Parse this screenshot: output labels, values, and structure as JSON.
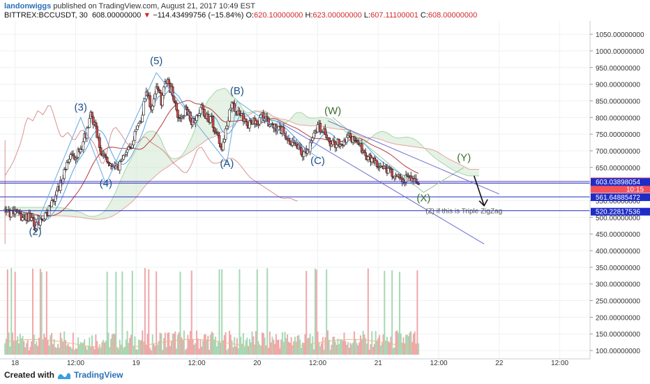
{
  "header": {
    "author": "landonwiggs",
    "published": "published on TradingView.com, August 21, 2017 10:49 EST",
    "symbol": "BITTREX:BCCUSDT, 30",
    "last": "608.00000000",
    "change_arrow": "▼",
    "change": "−114.43499756 (−15.84%)",
    "o_label": "O:",
    "o": "620.10000000",
    "h_label": "H:",
    "h": "623.00000000",
    "l_label": "L:",
    "l": "607.11100001",
    "c_label": "C:",
    "c": "608.00000000"
  },
  "footer": {
    "created": "Created with",
    "brand": "TradingView",
    "logo_icon": "tradingview-logo-icon"
  },
  "chart_data": {
    "type": "candlestick",
    "y_axis_labels": [
      "1050.00000000",
      "1000.00000000",
      "950.00000000",
      "900.00000000",
      "850.00000000",
      "800.00000000",
      "750.00000000",
      "700.00000000",
      "650.00000000",
      "600.00000000",
      "550.00000000",
      "500.00000000",
      "450.00000000",
      "400.00000000",
      "350.00000000",
      "300.00000000",
      "250.00000000",
      "200.00000000",
      "150.00000000",
      "100.00000000"
    ],
    "y_axis_values": [
      1050,
      1000,
      950,
      900,
      850,
      800,
      750,
      700,
      650,
      600,
      550,
      500,
      450,
      400,
      350,
      300,
      250,
      200,
      150,
      100
    ],
    "ylim": [
      75,
      1090
    ],
    "x_axis_labels": [
      {
        "label": "18",
        "t": 4
      },
      {
        "label": "12:00",
        "t": 16
      },
      {
        "label": "19",
        "t": 28
      },
      {
        "label": "12:00",
        "t": 40
      },
      {
        "label": "20",
        "t": 52
      },
      {
        "label": "12:00",
        "t": 64
      },
      {
        "label": "21",
        "t": 76
      },
      {
        "label": "12:00",
        "t": 88
      },
      {
        "label": "22",
        "t": 100
      },
      {
        "label": "12:00",
        "t": 112
      }
    ],
    "xlim": [
      1,
      118
    ],
    "price_tags": [
      {
        "value": 608,
        "label": "608.00000000",
        "color": "#f5525a",
        "sub": "10:15"
      },
      {
        "value": 603.03898054,
        "label": "603.03898054",
        "color": "#1f2cc6"
      },
      {
        "value": 561.64885472,
        "label": "561.64885472",
        "color": "#1f2cc6"
      },
      {
        "value": 520.22817536,
        "label": "520.22817536",
        "color": "#1f2cc6"
      }
    ],
    "horizontal_lines": [
      603.03898054,
      561.64885472,
      520.22817536
    ],
    "candle_close_path": [
      [
        2,
        520
      ],
      [
        4,
        510
      ],
      [
        6,
        495
      ],
      [
        7,
        505
      ],
      [
        8,
        470
      ],
      [
        9,
        498
      ],
      [
        10,
        505
      ],
      [
        12,
        560
      ],
      [
        13,
        600
      ],
      [
        14,
        650
      ],
      [
        15,
        680
      ],
      [
        16,
        690
      ],
      [
        17,
        700
      ],
      [
        18,
        750
      ],
      [
        19,
        810
      ],
      [
        20,
        760
      ],
      [
        21,
        700
      ],
      [
        22,
        690
      ],
      [
        23,
        650
      ],
      [
        24,
        640
      ],
      [
        25,
        670
      ],
      [
        26,
        700
      ],
      [
        27,
        720
      ],
      [
        28,
        760
      ],
      [
        29,
        800
      ],
      [
        30,
        880
      ],
      [
        31,
        830
      ],
      [
        32,
        900
      ],
      [
        33,
        850
      ],
      [
        34,
        910
      ],
      [
        35,
        880
      ],
      [
        36,
        820
      ],
      [
        37,
        790
      ],
      [
        38,
        830
      ],
      [
        39,
        780
      ],
      [
        40,
        810
      ],
      [
        41,
        830
      ],
      [
        42,
        800
      ],
      [
        43,
        790
      ],
      [
        44,
        750
      ],
      [
        45,
        700
      ],
      [
        46,
        780
      ],
      [
        47,
        840
      ],
      [
        48,
        820
      ],
      [
        49,
        800
      ],
      [
        50,
        770
      ],
      [
        51,
        790
      ],
      [
        52,
        780
      ],
      [
        53,
        810
      ],
      [
        54,
        790
      ],
      [
        55,
        780
      ],
      [
        56,
        770
      ],
      [
        57,
        760
      ],
      [
        58,
        740
      ],
      [
        59,
        720
      ],
      [
        60,
        710
      ],
      [
        61,
        690
      ],
      [
        62,
        700
      ],
      [
        63,
        740
      ],
      [
        64,
        780
      ],
      [
        65,
        760
      ],
      [
        66,
        730
      ],
      [
        67,
        720
      ],
      [
        68,
        725
      ],
      [
        69,
        730
      ],
      [
        70,
        740
      ],
      [
        71,
        735
      ],
      [
        72,
        720
      ],
      [
        73,
        700
      ],
      [
        74,
        680
      ],
      [
        75,
        670
      ],
      [
        76,
        660
      ],
      [
        77,
        650
      ],
      [
        78,
        640
      ],
      [
        79,
        630
      ],
      [
        80,
        620
      ],
      [
        81,
        615
      ],
      [
        82,
        620
      ],
      [
        83,
        610
      ],
      [
        84,
        608
      ]
    ],
    "volume_ylim": [
      0,
      180
    ],
    "elliott_wave_labels": [
      {
        "label": "(2)",
        "t": 8,
        "v": 447,
        "color": "#1c4f86"
      },
      {
        "label": "(3)",
        "t": 17,
        "v": 820,
        "color": "#1c4f86"
      },
      {
        "label": "(4)",
        "t": 22,
        "v": 592,
        "color": "#1c4f86"
      },
      {
        "label": "(5)",
        "t": 32,
        "v": 960,
        "color": "#1c4f86"
      },
      {
        "label": "(A)",
        "t": 46,
        "v": 652,
        "color": "#1c4f86"
      },
      {
        "label": "(B)",
        "t": 48,
        "v": 870,
        "color": "#1c4f86"
      },
      {
        "label": "(C)",
        "t": 64,
        "v": 660,
        "color": "#1c4f86"
      },
      {
        "label": "(W)",
        "t": 67,
        "v": 810,
        "color": "#3a6e2a"
      },
      {
        "label": "(X)",
        "t": 85,
        "v": 548,
        "color": "#3a6e2a"
      },
      {
        "label": "(Y)",
        "t": 93,
        "v": 670,
        "color": "#3a6e2a"
      }
    ],
    "annotation": {
      "label": "(Z) if this is Triple ZigZag",
      "t": 93,
      "v": 512,
      "color": "#555555"
    },
    "arrow": {
      "from": [
        95,
        625
      ],
      "to": [
        97,
        535
      ]
    }
  }
}
